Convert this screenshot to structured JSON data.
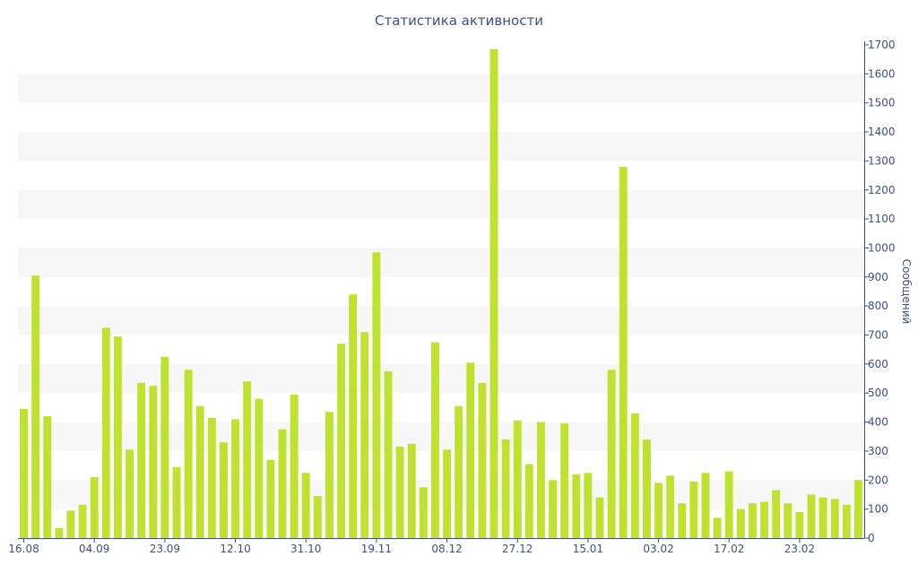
{
  "chart_data": {
    "type": "bar",
    "title": "Статистика активности",
    "xlabel": "",
    "ylabel": "Сообщений",
    "ylim": [
      0,
      1700
    ],
    "yticks": [
      0,
      100,
      200,
      300,
      400,
      500,
      600,
      700,
      800,
      900,
      1000,
      1100,
      1200,
      1300,
      1400,
      1500,
      1600,
      1700
    ],
    "y_axis_position": "right",
    "grid": "alternating horizontal bands",
    "x_tick_labels": [
      {
        "index": 0,
        "label": "16.08"
      },
      {
        "index": 6,
        "label": "04.09"
      },
      {
        "index": 12,
        "label": "23.09"
      },
      {
        "index": 18,
        "label": "12.10"
      },
      {
        "index": 24,
        "label": "31.10"
      },
      {
        "index": 30,
        "label": "19.11"
      },
      {
        "index": 36,
        "label": "08.12"
      },
      {
        "index": 42,
        "label": "27.12"
      },
      {
        "index": 48,
        "label": "15.01"
      },
      {
        "index": 54,
        "label": "03.02"
      },
      {
        "index": 60,
        "label": "17.02"
      },
      {
        "index": 66,
        "label": "23.02"
      }
    ],
    "values": [
      445,
      905,
      420,
      35,
      95,
      115,
      210,
      725,
      695,
      305,
      535,
      525,
      625,
      245,
      580,
      455,
      415,
      330,
      410,
      540,
      480,
      270,
      375,
      495,
      225,
      145,
      435,
      670,
      840,
      710,
      985,
      575,
      315,
      325,
      175,
      675,
      305,
      455,
      605,
      535,
      1685,
      340,
      405,
      255,
      400,
      200,
      395,
      220,
      225,
      140,
      580,
      1280,
      430,
      340,
      190,
      215,
      120,
      195,
      225,
      70,
      230,
      100,
      120,
      125,
      165,
      120,
      90,
      150,
      140,
      135,
      115,
      200
    ],
    "colors": {
      "bar": "#bfe22f",
      "axis": "#3d4f8a",
      "band": "#f7f7f7",
      "text": "#3d4f8a"
    }
  }
}
